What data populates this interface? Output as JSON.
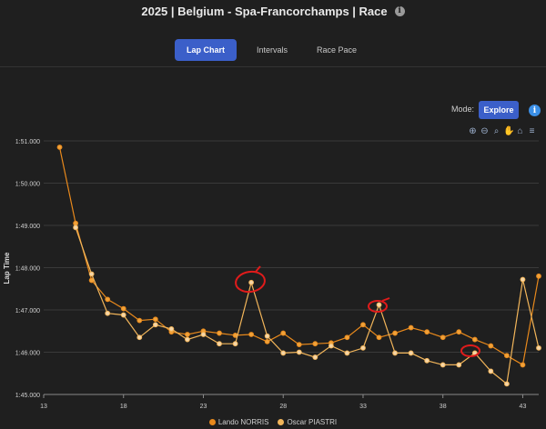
{
  "header": {
    "title": "2025 | Belgium - Spa-Francorchamps | Race",
    "info_icon": "info-icon"
  },
  "tabs": [
    {
      "label": "Lap Chart",
      "active": true
    },
    {
      "label": "Intervals",
      "active": false
    },
    {
      "label": "Race Pace",
      "active": false
    }
  ],
  "mode": {
    "label": "Mode:",
    "button_label": "Explore",
    "info_icon": "info-icon"
  },
  "toolbar": [
    "zoom-in-icon",
    "zoom-out-icon",
    "magnifier-icon",
    "pan-hand-icon",
    "home-icon",
    "menu-icon"
  ],
  "chart_data": {
    "type": "line",
    "title": "",
    "xlabel": "",
    "ylabel": "Lap Time",
    "xlim": [
      13,
      44
    ],
    "ylim": [
      105,
      111
    ],
    "x_ticks": [
      13,
      18,
      23,
      28,
      33,
      38,
      43
    ],
    "y_ticks": [
      {
        "value": 111,
        "label": "1:51.000"
      },
      {
        "value": 110,
        "label": "1:50.000"
      },
      {
        "value": 109,
        "label": "1:49.000"
      },
      {
        "value": 108,
        "label": "1:48.000"
      },
      {
        "value": 107,
        "label": "1:47.000"
      },
      {
        "value": 106,
        "label": "1:46.000"
      },
      {
        "value": 105,
        "label": "1:45.000"
      }
    ],
    "series": [
      {
        "name": "Lando NORRIS",
        "color": "#e8891c",
        "marker_fill": "#f0a23a",
        "x": [
          14,
          15,
          16,
          17,
          18,
          19,
          20,
          21,
          22,
          23,
          24,
          25,
          26,
          27,
          28,
          29,
          30,
          31,
          32,
          33,
          34,
          35,
          36,
          37,
          38,
          39,
          40,
          41,
          42,
          43,
          44
        ],
        "y": [
          110.85,
          109.05,
          107.7,
          107.25,
          107.03,
          106.75,
          106.78,
          106.48,
          106.42,
          106.5,
          106.45,
          106.4,
          106.42,
          106.25,
          106.45,
          106.18,
          106.2,
          106.22,
          106.35,
          106.65,
          106.35,
          106.45,
          106.58,
          106.48,
          106.35,
          106.48,
          106.3,
          106.15,
          105.92,
          105.7,
          107.8
        ]
      },
      {
        "name": "Oscar PIASTRI",
        "color": "#f2b55a",
        "marker_fill": "#f6d6a8",
        "x": [
          15,
          16,
          17,
          18,
          19,
          20,
          21,
          22,
          23,
          24,
          25,
          26,
          27,
          28,
          29,
          30,
          31,
          32,
          33,
          34,
          35,
          36,
          37,
          38,
          39,
          40,
          41,
          42,
          43,
          44
        ],
        "y": [
          108.95,
          107.85,
          106.92,
          106.88,
          106.35,
          106.65,
          106.55,
          106.3,
          106.42,
          106.2,
          106.2,
          107.65,
          106.38,
          105.98,
          106.0,
          105.88,
          106.15,
          105.98,
          106.1,
          107.12,
          105.98,
          105.98,
          105.8,
          105.7,
          105.7,
          105.98,
          105.55,
          105.25,
          107.72,
          106.1
        ]
      }
    ]
  }
}
